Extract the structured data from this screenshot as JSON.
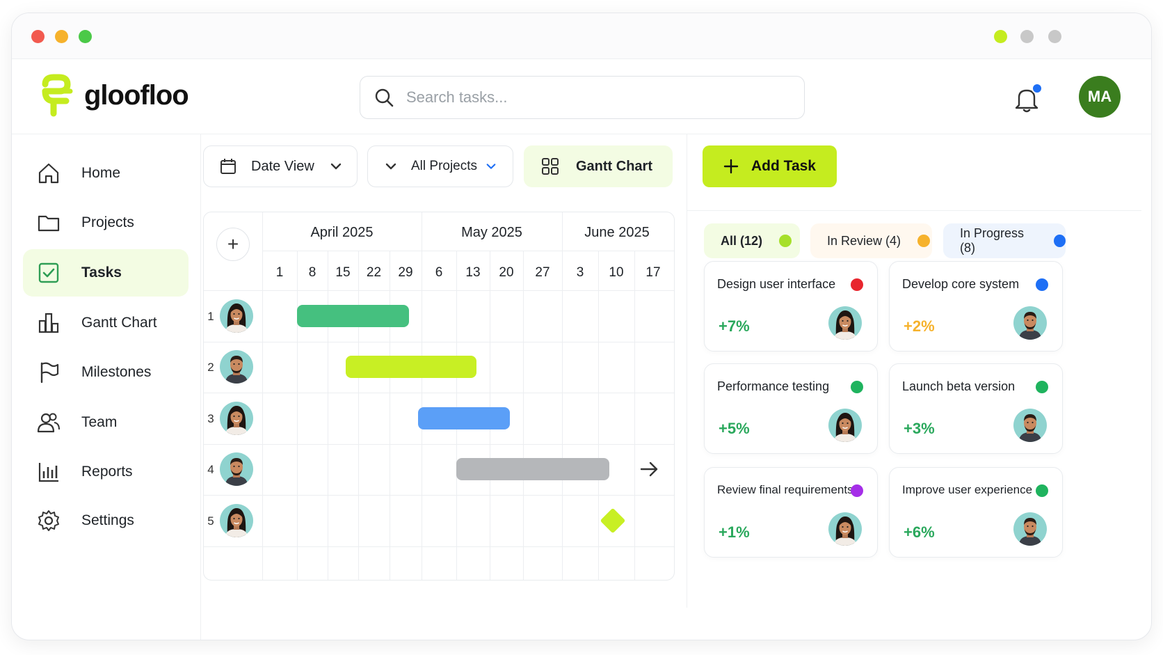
{
  "app": {
    "name": "gloofloo"
  },
  "search": {
    "placeholder": "Search tasks..."
  },
  "user": {
    "initials": "MA",
    "avatar_color": "#3a7d1e"
  },
  "notifications": {
    "badge_color": "#1e6ff5"
  },
  "window_controls": {
    "left_colors": [
      "#f25a4f",
      "#f6b22c",
      "#4bc948"
    ],
    "right_colors": [
      "#c5ec1f",
      "#c8c8c8",
      "#c8c8c8"
    ]
  },
  "sidebar": {
    "items": [
      {
        "label": "Home",
        "icon": "home-icon"
      },
      {
        "label": "Projects",
        "icon": "folder-icon"
      },
      {
        "label": "Tasks",
        "icon": "checkbox-icon",
        "active": true
      },
      {
        "label": "Gantt Chart",
        "icon": "bar-chart-icon"
      },
      {
        "label": "Milestones",
        "icon": "flag-icon"
      },
      {
        "label": "Team",
        "icon": "team-icon"
      },
      {
        "label": "Reports",
        "icon": "reports-icon"
      },
      {
        "label": "Settings",
        "icon": "gear-icon"
      }
    ]
  },
  "toolbar": {
    "date_view": "Date View",
    "all_projects": "All Projects",
    "gantt_chart": "Gantt Chart",
    "add_task": "Add Task"
  },
  "gantt": {
    "months": [
      "April 2025",
      "May 2025",
      "June 2025"
    ],
    "days": [
      "1",
      "8",
      "15",
      "22",
      "29",
      "6",
      "13",
      "20",
      "27",
      "3",
      "10",
      "17"
    ],
    "rows": [
      {
        "num": "1",
        "avatar": "female",
        "start_col": 1,
        "end_col": 4.6,
        "color": "#45c07f"
      },
      {
        "num": "2",
        "avatar": "male",
        "start_col": 2.6,
        "end_col": 6.6,
        "color": "#c8ef24"
      },
      {
        "num": "3",
        "avatar": "female",
        "start_col": 4.9,
        "end_col": 7.6,
        "color": "#5b9ff7"
      },
      {
        "num": "4",
        "avatar": "male",
        "start_col": 6,
        "end_col": 10.3,
        "color": "#b5b7ba"
      },
      {
        "num": "5",
        "avatar": "female",
        "milestone_col": 10.4,
        "color": "#c8ef24"
      }
    ]
  },
  "filters": [
    {
      "label": "All (12)",
      "dot_color": "#a6e02a",
      "bg": "#f3fce3"
    },
    {
      "label": "In Review (4)",
      "dot_color": "#f6b22c",
      "bg": "#fff8ef"
    },
    {
      "label": "In Progress (8)",
      "dot_color": "#1e6ff5",
      "bg": "#eef4fd"
    }
  ],
  "tasks": [
    {
      "title": "Design user interface",
      "pct": "+7%",
      "dot_color": "#e8262e",
      "pct_color": "#2aa85c",
      "avatar": "female"
    },
    {
      "title": "Develop core system",
      "pct": "+2%",
      "dot_color": "#1e6ff5",
      "pct_color": "#f6b22c",
      "avatar": "male"
    },
    {
      "title": "Performance testing",
      "pct": "+5%",
      "dot_color": "#1fb35e",
      "pct_color": "#2aa85c",
      "avatar": "female"
    },
    {
      "title": "Launch beta version",
      "pct": "+3%",
      "dot_color": "#1fb35e",
      "pct_color": "#2aa85c",
      "avatar": "male"
    },
    {
      "title": "Review final requirements",
      "pct": "+1%",
      "dot_color": "#a52ee8",
      "pct_color": "#2aa85c",
      "avatar": "female"
    },
    {
      "title": "Improve user experience",
      "pct": "+6%",
      "dot_color": "#1fb35e",
      "pct_color": "#2aa85c",
      "avatar": "male"
    }
  ]
}
